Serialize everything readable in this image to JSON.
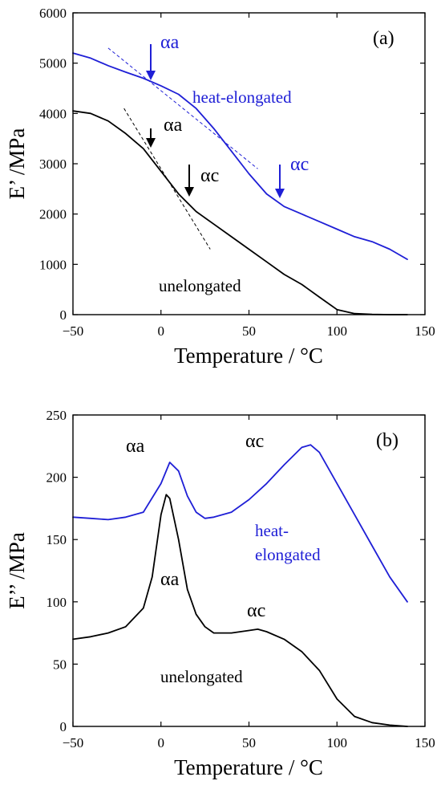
{
  "chart_data": [
    {
      "type": "line",
      "panel_label": "(a)",
      "xlabel": "Temperature / °C",
      "ylabel": "E’ /MPa",
      "xlim": [
        -50,
        150
      ],
      "ylim": [
        0,
        6000
      ],
      "xticks": [
        "−50",
        "0",
        "50",
        "100",
        "150"
      ],
      "yticks": [
        "0",
        "1000",
        "2000",
        "3000",
        "4000",
        "5000",
        "6000"
      ],
      "series": [
        {
          "name": "heat-elongated",
          "color": "#1f1fd6",
          "x": [
            -50,
            -40,
            -30,
            -20,
            -10,
            0,
            10,
            20,
            30,
            40,
            50,
            60,
            70,
            80,
            90,
            100,
            110,
            120,
            130,
            140
          ],
          "y": [
            5200,
            5100,
            4950,
            4820,
            4700,
            4550,
            4380,
            4100,
            3700,
            3250,
            2800,
            2400,
            2150,
            2000,
            1850,
            1700,
            1550,
            1450,
            1300,
            1100
          ]
        },
        {
          "name": "unelongated",
          "color": "#000000",
          "x": [
            -50,
            -40,
            -30,
            -20,
            -10,
            0,
            10,
            20,
            30,
            40,
            50,
            60,
            70,
            80,
            90,
            100,
            110,
            120,
            130,
            140
          ],
          "y": [
            4050,
            4000,
            3850,
            3600,
            3300,
            2850,
            2400,
            2050,
            1800,
            1550,
            1300,
            1050,
            800,
            600,
            350,
            100,
            20,
            5,
            0,
            0
          ]
        }
      ],
      "annotations": [
        {
          "text": "αa",
          "color": "#1f1fd6",
          "arrow_x": -8,
          "arrow_y": 4700
        },
        {
          "text": "αc",
          "color": "#1f1fd6",
          "arrow_x": 70,
          "arrow_y": 2250
        },
        {
          "text": "αa",
          "color": "#000000",
          "arrow_x": -8,
          "arrow_y": 3300
        },
        {
          "text": "αc",
          "color": "#000000",
          "arrow_x": 16,
          "arrow_y": 2300
        }
      ],
      "tangent_lines": [
        {
          "color": "#1f1fd6",
          "x": [
            -30,
            55
          ],
          "y": [
            5300,
            2900
          ]
        },
        {
          "color": "#000000",
          "x": [
            -21,
            28
          ],
          "y": [
            4100,
            1300
          ]
        }
      ]
    },
    {
      "type": "line",
      "panel_label": "(b)",
      "xlabel": "Temperature / °C",
      "ylabel": "E’’ /MPa",
      "xlim": [
        -50,
        150
      ],
      "ylim": [
        0,
        250
      ],
      "xticks": [
        "−50",
        "0",
        "50",
        "100",
        "150"
      ],
      "yticks": [
        "0",
        "50",
        "100",
        "150",
        "200",
        "250"
      ],
      "series": [
        {
          "name": "heat-elongated",
          "color": "#1f1fd6",
          "x": [
            -50,
            -40,
            -30,
            -20,
            -10,
            0,
            5,
            10,
            15,
            20,
            25,
            30,
            40,
            50,
            60,
            70,
            80,
            85,
            90,
            100,
            110,
            120,
            130,
            140
          ],
          "y": [
            168,
            167,
            166,
            168,
            172,
            195,
            212,
            205,
            185,
            172,
            167,
            168,
            172,
            182,
            195,
            210,
            224,
            226,
            220,
            195,
            170,
            145,
            120,
            100
          ]
        },
        {
          "name": "unelongated",
          "color": "#000000",
          "x": [
            -50,
            -40,
            -30,
            -20,
            -10,
            -5,
            0,
            3,
            5,
            10,
            15,
            20,
            25,
            30,
            40,
            50,
            55,
            60,
            70,
            80,
            90,
            100,
            110,
            120,
            130,
            140
          ],
          "y": [
            70,
            72,
            75,
            80,
            95,
            120,
            170,
            186,
            183,
            150,
            110,
            90,
            80,
            75,
            75,
            77,
            78,
            76,
            70,
            60,
            45,
            22,
            8,
            3,
            1,
            0
          ]
        }
      ],
      "annotations": [
        {
          "text": "αa",
          "color": "#000000"
        },
        {
          "text": "αc",
          "color": "#000000"
        },
        {
          "text": "αa",
          "color": "#000000"
        },
        {
          "text": "αc",
          "color": "#000000"
        }
      ]
    }
  ]
}
